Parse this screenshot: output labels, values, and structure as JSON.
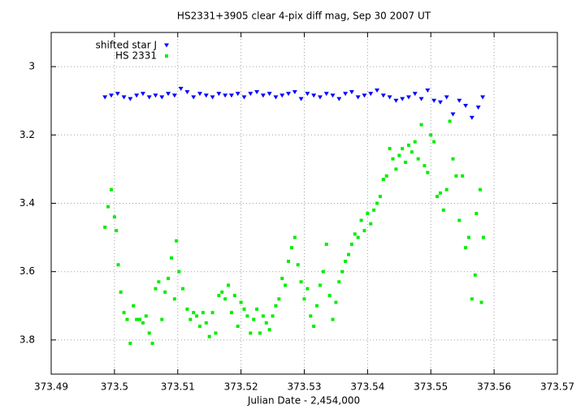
{
  "chart_data": {
    "type": "scatter",
    "title": "HS2331+3905 clear 4-pix diff mag, Sep 30 2007 UT",
    "x_label": "Julian Date - 2,454,000",
    "xlim": [
      373.49,
      373.57
    ],
    "xticks": [
      373.49,
      373.5,
      373.51,
      373.52,
      373.53,
      373.54,
      373.55,
      373.56,
      373.57
    ],
    "ylim": [
      2.9,
      3.9
    ],
    "y_reversed": true,
    "yticks": [
      3,
      3.2,
      3.4,
      3.6,
      3.8
    ],
    "grid": true,
    "legend": "top-left",
    "series": [
      {
        "name": "shifted star J",
        "color": "#0000ff",
        "marker": "triangle-down",
        "x": [
          373.4985,
          373.4995,
          373.5005,
          373.5015,
          373.5025,
          373.5035,
          373.5045,
          373.5055,
          373.5065,
          373.5075,
          373.5085,
          373.5095,
          373.5105,
          373.5115,
          373.5125,
          373.5135,
          373.5145,
          373.5155,
          373.5165,
          373.5175,
          373.5185,
          373.5195,
          373.5205,
          373.5215,
          373.5225,
          373.5235,
          373.5245,
          373.5255,
          373.5265,
          373.5275,
          373.5285,
          373.5295,
          373.5305,
          373.5315,
          373.5325,
          373.5335,
          373.5345,
          373.5355,
          373.5365,
          373.5375,
          373.5385,
          373.5395,
          373.5405,
          373.5415,
          373.5425,
          373.5435,
          373.5445,
          373.5455,
          373.5465,
          373.5475,
          373.5485,
          373.5495,
          373.5505,
          373.5515,
          373.5525,
          373.5535,
          373.5545,
          373.5555,
          373.5565,
          373.5575,
          373.5582
        ],
        "values": [
          3.09,
          3.085,
          3.08,
          3.09,
          3.095,
          3.085,
          3.08,
          3.09,
          3.085,
          3.09,
          3.08,
          3.085,
          3.065,
          3.075,
          3.09,
          3.08,
          3.085,
          3.09,
          3.08,
          3.085,
          3.085,
          3.08,
          3.09,
          3.08,
          3.075,
          3.085,
          3.08,
          3.09,
          3.085,
          3.08,
          3.075,
          3.095,
          3.08,
          3.085,
          3.09,
          3.08,
          3.085,
          3.095,
          3.08,
          3.075,
          3.09,
          3.085,
          3.08,
          3.07,
          3.085,
          3.09,
          3.1,
          3.095,
          3.09,
          3.08,
          3.095,
          3.07,
          3.1,
          3.105,
          3.09,
          3.14,
          3.1,
          3.115,
          3.15,
          3.12,
          3.09
        ]
      },
      {
        "name": "HS 2331",
        "color": "#00ee00",
        "marker": "square",
        "x": [
          373.4985,
          373.499,
          373.4995,
          373.5,
          373.5003,
          373.5006,
          373.501,
          373.5015,
          373.502,
          373.5025,
          373.503,
          373.5035,
          373.504,
          373.5045,
          373.505,
          373.5055,
          373.506,
          373.5065,
          373.507,
          373.5075,
          373.508,
          373.5085,
          373.509,
          373.5095,
          373.5098,
          373.5102,
          373.5108,
          373.5115,
          373.512,
          373.5125,
          373.513,
          373.5135,
          373.514,
          373.5145,
          373.515,
          373.5155,
          373.516,
          373.5165,
          373.517,
          373.5175,
          373.518,
          373.5185,
          373.519,
          373.5195,
          373.52,
          373.5205,
          373.521,
          373.5215,
          373.522,
          373.5225,
          373.523,
          373.5235,
          373.524,
          373.5245,
          373.525,
          373.5255,
          373.526,
          373.5265,
          373.527,
          373.5275,
          373.528,
          373.5285,
          373.529,
          373.5295,
          373.53,
          373.5305,
          373.531,
          373.5315,
          373.532,
          373.5325,
          373.533,
          373.5335,
          373.534,
          373.5345,
          373.535,
          373.5355,
          373.536,
          373.5365,
          373.537,
          373.5375,
          373.538,
          373.5385,
          373.539,
          373.5395,
          373.54,
          373.5405,
          373.541,
          373.5415,
          373.542,
          373.5425,
          373.543,
          373.5435,
          373.544,
          373.5445,
          373.545,
          373.5455,
          373.546,
          373.5465,
          373.547,
          373.5475,
          373.548,
          373.5485,
          373.549,
          373.5495,
          373.55,
          373.5505,
          373.551,
          373.5515,
          373.552,
          373.5525,
          373.553,
          373.5535,
          373.554,
          373.5545,
          373.555,
          373.5555,
          373.556,
          373.5565,
          373.557,
          373.5572,
          373.5578,
          373.558,
          373.5583
        ],
        "values": [
          3.47,
          3.41,
          3.36,
          3.44,
          3.48,
          3.58,
          3.66,
          3.72,
          3.74,
          3.81,
          3.7,
          3.74,
          3.74,
          3.75,
          3.73,
          3.78,
          3.81,
          3.65,
          3.63,
          3.74,
          3.66,
          3.62,
          3.56,
          3.68,
          3.51,
          3.6,
          3.65,
          3.71,
          3.74,
          3.72,
          3.73,
          3.76,
          3.72,
          3.75,
          3.79,
          3.72,
          3.78,
          3.67,
          3.66,
          3.68,
          3.64,
          3.72,
          3.67,
          3.76,
          3.69,
          3.71,
          3.73,
          3.78,
          3.74,
          3.71,
          3.78,
          3.73,
          3.75,
          3.77,
          3.73,
          3.7,
          3.68,
          3.62,
          3.64,
          3.57,
          3.53,
          3.5,
          3.58,
          3.63,
          3.68,
          3.65,
          3.73,
          3.76,
          3.7,
          3.64,
          3.6,
          3.52,
          3.67,
          3.74,
          3.69,
          3.63,
          3.6,
          3.57,
          3.55,
          3.52,
          3.49,
          3.5,
          3.45,
          3.48,
          3.43,
          3.46,
          3.42,
          3.4,
          3.38,
          3.33,
          3.32,
          3.24,
          3.27,
          3.3,
          3.26,
          3.24,
          3.28,
          3.23,
          3.25,
          3.22,
          3.27,
          3.17,
          3.29,
          3.31,
          3.2,
          3.22,
          3.38,
          3.37,
          3.42,
          3.36,
          3.16,
          3.27,
          3.32,
          3.45,
          3.32,
          3.53,
          3.5,
          3.68,
          3.61,
          3.43,
          3.36,
          3.69,
          3.5
        ]
      }
    ]
  }
}
